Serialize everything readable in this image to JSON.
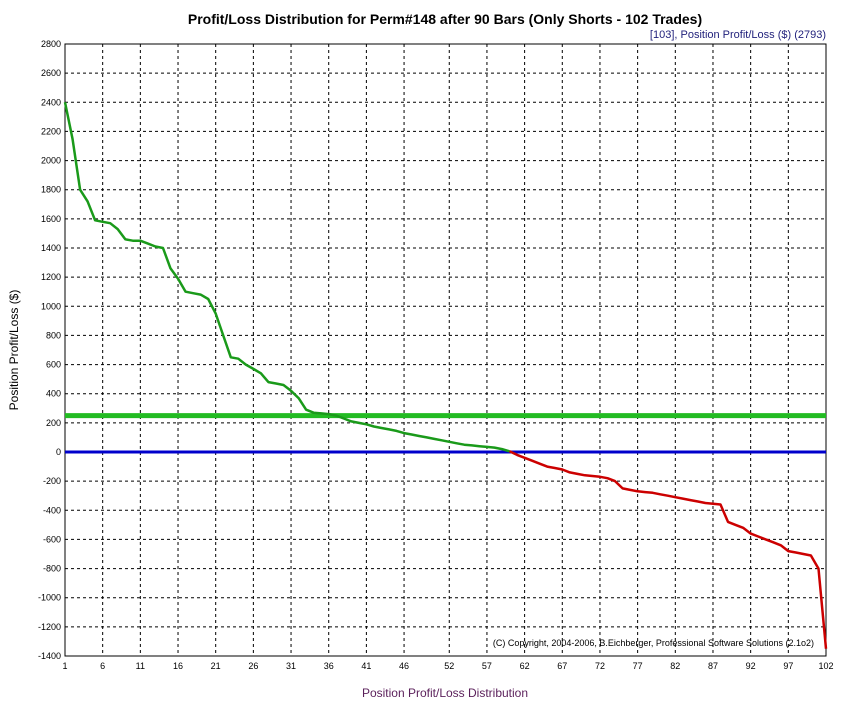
{
  "chart_data": {
    "type": "line",
    "title": "Profit/Loss Distribution for Perm#148 after 90 Bars (Only Shorts - 102 Trades)",
    "legend": "[103],   Position Profit/Loss ($) (2793)",
    "xlabel": "Position Profit/Loss Distribution",
    "ylabel": "Position Profit/Loss ($)",
    "copyright": "(C) Copyright, 2004-2006, B.Eichberger, Professional Software Solutions (2.1o2)",
    "xlim": [
      1,
      102
    ],
    "ylim": [
      -1400,
      2800
    ],
    "y_ticks": [
      2800,
      2600,
      2400,
      2200,
      2000,
      1800,
      1600,
      1400,
      1200,
      1000,
      800,
      600,
      400,
      200,
      0,
      -200,
      -400,
      -600,
      -800,
      -1000,
      -1200,
      -1400
    ],
    "x_ticks": [
      1,
      6,
      11,
      16,
      21,
      26,
      31,
      36,
      41,
      46,
      52,
      57,
      62,
      67,
      72,
      77,
      82,
      87,
      92,
      97,
      102
    ],
    "grid": true,
    "colors": {
      "profit": "#1a9a1a",
      "loss": "#cc0000",
      "zero_line": "#0000cc",
      "average_line": "#22bb22"
    },
    "average_line_value": 250,
    "zero_line_value": 0,
    "series": [
      {
        "x": [
          1,
          2,
          3,
          4,
          5,
          6,
          7,
          8,
          9,
          10,
          11,
          12,
          13,
          14,
          15,
          16,
          17,
          18,
          19,
          20,
          21,
          22,
          23,
          24,
          25,
          26,
          27,
          28,
          29,
          30,
          31,
          32,
          33,
          34,
          35,
          36,
          37,
          38,
          39,
          40,
          41,
          42,
          43,
          44,
          45,
          46,
          47,
          48,
          49,
          50,
          51,
          52,
          53,
          54,
          55,
          56,
          57,
          58,
          59,
          60,
          61,
          62,
          63,
          64,
          65,
          66,
          67,
          68,
          69,
          70,
          71,
          72,
          73,
          74,
          75,
          76,
          77,
          78,
          79,
          80,
          81,
          82,
          83,
          84,
          85,
          86,
          87,
          88,
          89,
          90,
          91,
          92,
          93,
          94,
          95,
          96,
          97,
          98,
          99,
          100,
          101,
          102
        ],
        "values": [
          2400,
          2150,
          1800,
          1720,
          1590,
          1580,
          1570,
          1530,
          1460,
          1450,
          1450,
          1430,
          1410,
          1400,
          1260,
          1190,
          1100,
          1090,
          1080,
          1050,
          950,
          800,
          650,
          640,
          600,
          570,
          540,
          480,
          470,
          460,
          420,
          370,
          290,
          270,
          265,
          260,
          250,
          230,
          210,
          200,
          190,
          175,
          165,
          155,
          145,
          130,
          120,
          110,
          100,
          90,
          80,
          70,
          60,
          50,
          45,
          40,
          35,
          30,
          20,
          5,
          -20,
          -40,
          -60,
          -80,
          -100,
          -110,
          -120,
          -140,
          -150,
          -160,
          -165,
          -170,
          -180,
          -200,
          -250,
          -260,
          -270,
          -275,
          -280,
          -290,
          -300,
          -310,
          -320,
          -330,
          -340,
          -350,
          -355,
          -360,
          -480,
          -500,
          -520,
          -560,
          -580,
          -600,
          -620,
          -640,
          -680,
          -690,
          -700,
          -710,
          -800,
          -1350
        ]
      }
    ]
  }
}
